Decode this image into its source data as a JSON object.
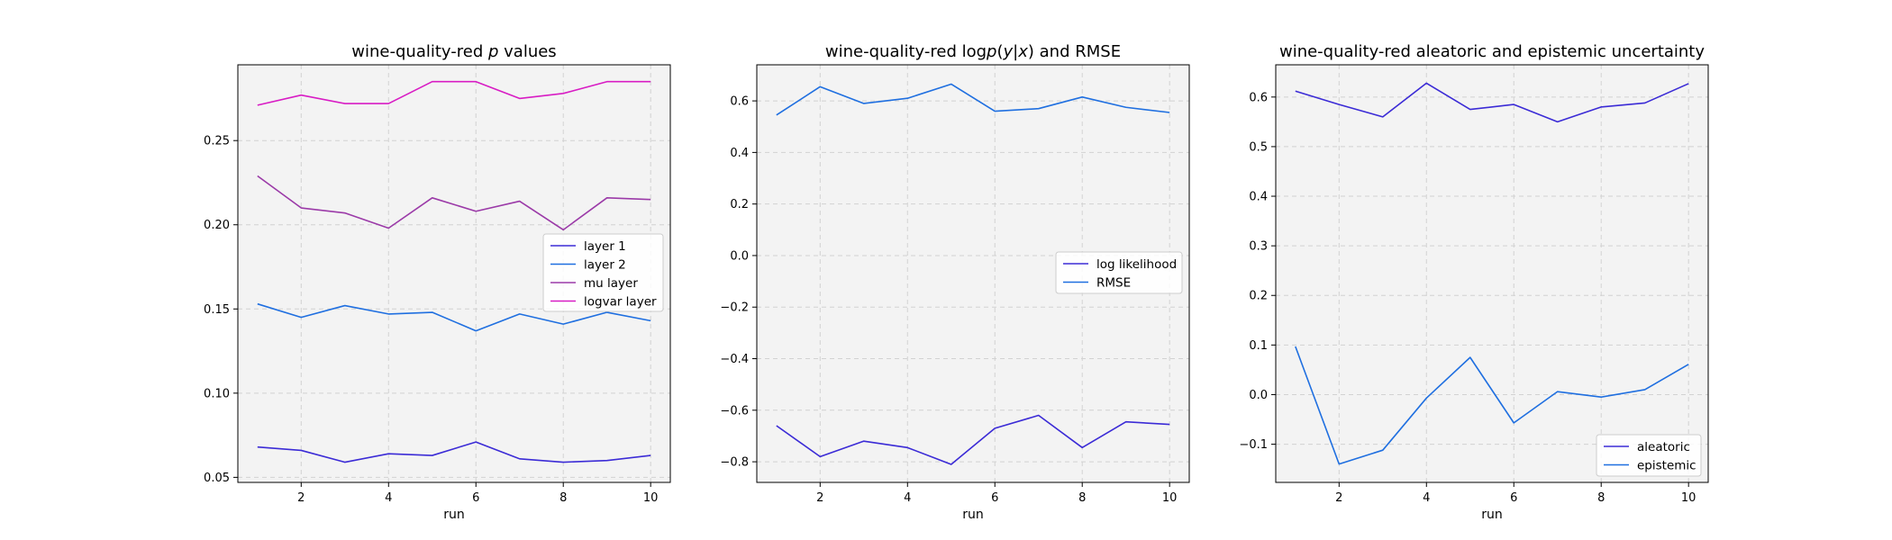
{
  "chart_data": [
    {
      "type": "line",
      "title_parts": [
        {
          "text": "wine-quality-red ",
          "italic": false
        },
        {
          "text": "p",
          "italic": true
        },
        {
          "text": " values",
          "italic": false
        }
      ],
      "xlabel": "run",
      "x": [
        1,
        2,
        3,
        4,
        5,
        6,
        7,
        8,
        9,
        10
      ],
      "xlim": [
        0.55,
        10.45
      ],
      "xticks": [
        2,
        4,
        6,
        8,
        10
      ],
      "ylim": [
        0.047,
        0.295
      ],
      "yticks": [
        0.05,
        0.1,
        0.15,
        0.2,
        0.25
      ],
      "ytick_decimals": 2,
      "grid": true,
      "legend": "center-right",
      "series": [
        {
          "name": "layer 1",
          "color": "#3b2bd6",
          "values": [
            0.068,
            0.066,
            0.059,
            0.064,
            0.063,
            0.071,
            0.061,
            0.059,
            0.06,
            0.063
          ]
        },
        {
          "name": "layer 2",
          "color": "#1f6fe0",
          "values": [
            0.153,
            0.145,
            0.152,
            0.147,
            0.148,
            0.137,
            0.147,
            0.141,
            0.148,
            0.143
          ]
        },
        {
          "name": "mu layer",
          "color": "#9b3aa8",
          "values": [
            0.229,
            0.21,
            0.207,
            0.198,
            0.216,
            0.208,
            0.214,
            0.197,
            0.216,
            0.215
          ]
        },
        {
          "name": "logvar layer",
          "color": "#d81cc4",
          "values": [
            0.271,
            0.277,
            0.272,
            0.272,
            0.285,
            0.285,
            0.275,
            0.278,
            0.285,
            0.285
          ]
        }
      ]
    },
    {
      "type": "line",
      "title_parts": [
        {
          "text": "wine-quality-red log",
          "italic": false
        },
        {
          "text": "p",
          "italic": true
        },
        {
          "text": "(",
          "italic": false
        },
        {
          "text": "y",
          "italic": true
        },
        {
          "text": "|",
          "italic": false
        },
        {
          "text": "x",
          "italic": true
        },
        {
          "text": ") and RMSE",
          "italic": false
        }
      ],
      "xlabel": "run",
      "x": [
        1,
        2,
        3,
        4,
        5,
        6,
        7,
        8,
        9,
        10
      ],
      "xlim": [
        0.55,
        10.45
      ],
      "xticks": [
        2,
        4,
        6,
        8,
        10
      ],
      "ylim": [
        -0.88,
        0.74
      ],
      "yticks": [
        -0.8,
        -0.6,
        -0.4,
        -0.2,
        0.0,
        0.2,
        0.4,
        0.6
      ],
      "ytick_decimals": 1,
      "grid": true,
      "legend": "center-right",
      "series": [
        {
          "name": "log likelihood",
          "color": "#3b2bd6",
          "values": [
            -0.66,
            -0.78,
            -0.72,
            -0.745,
            -0.81,
            -0.67,
            -0.62,
            -0.745,
            -0.645,
            -0.655
          ]
        },
        {
          "name": "RMSE",
          "color": "#1f6fe0",
          "values": [
            0.545,
            0.655,
            0.59,
            0.61,
            0.665,
            0.56,
            0.57,
            0.615,
            0.575,
            0.555
          ]
        }
      ]
    },
    {
      "type": "line",
      "title_parts": [
        {
          "text": "wine-quality-red aleatoric and epistemic uncertainty",
          "italic": false
        }
      ],
      "xlabel": "run",
      "x": [
        1,
        2,
        3,
        4,
        5,
        6,
        7,
        8,
        9,
        10
      ],
      "xlim": [
        0.55,
        10.45
      ],
      "xticks": [
        2,
        4,
        6,
        8,
        10
      ],
      "ylim": [
        -0.177,
        0.665
      ],
      "yticks": [
        -0.1,
        0.0,
        0.1,
        0.2,
        0.3,
        0.4,
        0.5,
        0.6
      ],
      "ytick_decimals": 1,
      "grid": true,
      "legend": "lower-right",
      "series": [
        {
          "name": "aleatoric",
          "color": "#3b2bd6",
          "values": [
            0.612,
            0.585,
            0.56,
            0.628,
            0.575,
            0.585,
            0.55,
            0.58,
            0.588,
            0.627
          ]
        },
        {
          "name": "epistemic",
          "color": "#1f6fe0",
          "values": [
            0.097,
            -0.14,
            -0.112,
            -0.007,
            0.075,
            -0.057,
            0.006,
            -0.005,
            0.01,
            0.061
          ]
        }
      ]
    }
  ]
}
